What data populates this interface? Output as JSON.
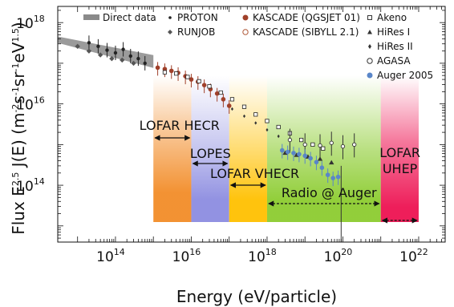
{
  "chart_data": {
    "type": "scatter",
    "title": "",
    "xlabel": "Energy (eV/particle)",
    "ylabel": "Flux E^2.5 J(E) (m^-2 s^-1 sr^-1 eV^1.5)",
    "xscale": "log",
    "yscale": "log",
    "xlim": [
      3000000000000.0,
      5e+22
    ],
    "ylim": [
      4000000000000.0,
      2.5e+18
    ],
    "grid": false,
    "legend_position": "top",
    "x_ticks": [
      {
        "value": 100000000000000.0,
        "label": "10",
        "exp": "14"
      },
      {
        "value": 1e+16,
        "label": "10",
        "exp": "16"
      },
      {
        "value": 1e+18,
        "label": "10",
        "exp": "18"
      },
      {
        "value": 1e+20,
        "label": "10",
        "exp": "20"
      },
      {
        "value": 1e+22,
        "label": "10",
        "exp": "22"
      }
    ],
    "y_ticks": [
      {
        "value": 1e+18,
        "label": "10",
        "exp": "18"
      },
      {
        "value": 1e+16,
        "label": "10",
        "exp": "16"
      },
      {
        "value": 100000000000000.0,
        "label": "10",
        "exp": "14"
      }
    ],
    "legend": [
      {
        "name": "Direct data",
        "marker": "band",
        "color": "#8a8a8a"
      },
      {
        "name": "PROTON",
        "marker": "dot",
        "color": "#222222"
      },
      {
        "name": "RUNJOB",
        "marker": "diamond",
        "color": "#555555"
      },
      {
        "name": "KASCADE (QGSJET 01)",
        "marker": "filled-circle",
        "color": "#a0402a"
      },
      {
        "name": "KASCADE (SIBYLL 2.1)",
        "marker": "open-circle",
        "color": "#b05a3a"
      },
      {
        "name": "Akeno",
        "marker": "open-square",
        "color": "#222222"
      },
      {
        "name": "HiRes I",
        "marker": "triangle",
        "color": "#333333"
      },
      {
        "name": "HiRes II",
        "marker": "small-diamond",
        "color": "#333333"
      },
      {
        "name": "AGASA",
        "marker": "open-circle",
        "color": "#333333"
      },
      {
        "name": "Auger 2005",
        "marker": "filled-circle",
        "color": "#5a86c8"
      }
    ],
    "regions": [
      {
        "label": "LOFAR HECR",
        "xmin": 1000000000000000.0,
        "xmax": 1e+16,
        "color": "#f28c28"
      },
      {
        "label": "LOPES",
        "xmin": 1e+16,
        "xmax": 1e+17,
        "color": "#8c8ce0"
      },
      {
        "label": "LOFAR VHECR",
        "xmin": 1e+17,
        "xmax": 1e+18,
        "color": "#ffc000"
      },
      {
        "label": "Radio @ Auger",
        "xmin": 1e+18,
        "xmax": 1e+21,
        "color": "#8ccc30"
      },
      {
        "label": "LOFAR",
        "label2": "UHEP",
        "xmin": 1e+21,
        "xmax": 1e+22,
        "color": "#ee1e5a"
      }
    ],
    "direct_band": [
      {
        "x": 3000000000000.0,
        "y": 3.8e+17
      },
      {
        "x": 1000000000000000.0,
        "y": 1.1e+17
      }
    ],
    "series": [
      {
        "name": "PROTON",
        "points": [
          [
            20000000000000.0,
            3.2e+17
          ],
          [
            35000000000000.0,
            2.6e+17
          ],
          [
            60000000000000.0,
            2.1e+17
          ],
          [
            100000000000000.0,
            1.8e+17
          ],
          [
            160000000000000.0,
            2.2e+17
          ],
          [
            250000000000000.0,
            1.5e+17
          ],
          [
            400000000000000.0,
            1.3e+17
          ],
          [
            600000000000000.0,
            1e+17
          ]
        ]
      },
      {
        "name": "RUNJOB",
        "points": [
          [
            10000000000000.0,
            2.6e+17
          ],
          [
            20000000000000.0,
            2e+17
          ],
          [
            40000000000000.0,
            1.6e+17
          ],
          [
            80000000000000.0,
            1.3e+17
          ],
          [
            150000000000000.0,
            1.2e+17
          ],
          [
            300000000000000.0,
            1e+17
          ]
        ]
      },
      {
        "name": "KASCADE (QGSJET 01)",
        "points": [
          [
            1300000000000000.0,
            7.8e+16
          ],
          [
            2000000000000000.0,
            7.2e+16
          ],
          [
            3000000000000000.0,
            6.5e+16
          ],
          [
            4500000000000000.0,
            5.8e+16
          ],
          [
            7000000000000000.0,
            4.8e+16
          ],
          [
            1e+16,
            4e+16
          ],
          [
            1.5e+16,
            3.5e+16
          ],
          [
            2.2e+16,
            2.9e+16
          ],
          [
            3.2e+16,
            2.3e+16
          ],
          [
            4.8e+16,
            1.8e+16
          ],
          [
            7e+16,
            1.3e+16
          ],
          [
            1e+17,
            9000000000000000.0
          ]
        ]
      },
      {
        "name": "Akeno",
        "points": [
          [
            2000000000000000.0,
            6e+16
          ],
          [
            4000000000000000.0,
            5.6e+16
          ],
          [
            8000000000000000.0,
            4.6e+16
          ],
          [
            1.6e+16,
            3.6e+16
          ],
          [
            3e+16,
            2.7e+16
          ],
          [
            6e+16,
            1.9e+16
          ],
          [
            1.2e+17,
            1.3e+16
          ],
          [
            2.5e+17,
            8500000000000000.0
          ],
          [
            5e+17,
            5500000000000000.0
          ],
          [
            1e+18,
            3800000000000000.0
          ],
          [
            2e+18,
            2700000000000000.0
          ],
          [
            4e+18,
            1900000000000000.0
          ],
          [
            8e+18,
            1300000000000000.0
          ],
          [
            1.6e+19,
            1000000000000000.0
          ],
          [
            3e+19,
            800000000000000.0
          ]
        ]
      },
      {
        "name": "HiRes I",
        "points": [
          [
            3e+18,
            620000000000000.0
          ],
          [
            6e+18,
            550000000000000.0
          ],
          [
            1.2e+19,
            500000000000000.0
          ],
          [
            2.5e+19,
            440000000000000.0
          ],
          [
            5e+19,
            360000000000000.0
          ]
        ]
      },
      {
        "name": "HiRes II",
        "points": [
          [
            1.2e+17,
            7500000000000000.0
          ],
          [
            2.5e+17,
            5000000000000000.0
          ],
          [
            5e+17,
            3400000000000000.0
          ],
          [
            1e+18,
            2300000000000000.0
          ],
          [
            2e+18,
            1600000000000000.0
          ]
        ]
      },
      {
        "name": "AGASA",
        "points": [
          [
            4e+18,
            1300000000000000.0
          ],
          [
            1e+19,
            1000000000000000.0
          ],
          [
            2.5e+19,
            950000000000000.0
          ],
          [
            5e+19,
            1100000000000000.0
          ],
          [
            1e+20,
            900000000000000.0
          ],
          [
            2e+20,
            1000000000000000.0
          ]
        ]
      },
      {
        "name": "Auger 2005",
        "points": [
          [
            2.5e+18,
            720000000000000.0
          ],
          [
            3.5e+18,
            660000000000000.0
          ],
          [
            5e+18,
            620000000000000.0
          ],
          [
            7e+18,
            580000000000000.0
          ],
          [
            1e+19,
            530000000000000.0
          ],
          [
            1.4e+19,
            460000000000000.0
          ],
          [
            2e+19,
            370000000000000.0
          ],
          [
            2.8e+19,
            270000000000000.0
          ],
          [
            4e+19,
            180000000000000.0
          ],
          [
            5.5e+19,
            150000000000000.0
          ],
          [
            7.5e+19,
            160000000000000.0
          ]
        ]
      }
    ]
  }
}
